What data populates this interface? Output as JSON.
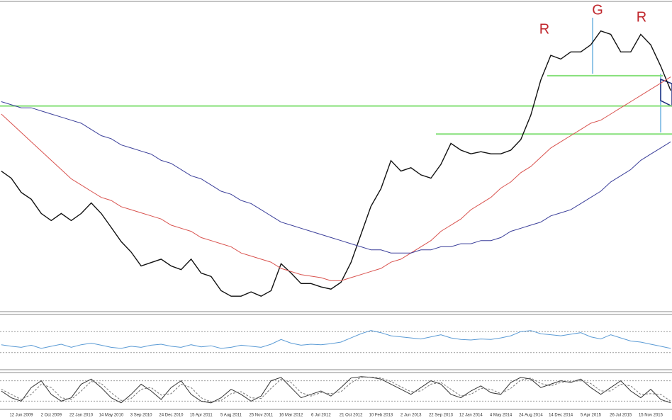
{
  "chart_data": [
    {
      "type": "line",
      "ylim": [
        0,
        100
      ],
      "annotations": [
        "R",
        "G",
        "R"
      ],
      "levels": [
        66.6,
        57.5,
        76.4
      ],
      "level_color": "#86e07a",
      "series": [
        {
          "color": "#111111",
          "values": [
            45.5,
            43.2,
            38.6,
            36.4,
            31.8,
            29.5,
            31.8,
            29.5,
            31.8,
            35.2,
            31.8,
            27.3,
            22.7,
            19.3,
            14.8,
            15.9,
            17.0,
            14.8,
            13.6,
            17.0,
            12.5,
            11.4,
            6.8,
            5.0,
            5.0,
            6.4,
            5.0,
            6.8,
            15.5,
            12.5,
            9.1,
            9.1,
            8.0,
            7.3,
            9.5,
            15.9,
            25.0,
            34.1,
            39.8,
            48.9,
            45.5,
            46.6,
            44.3,
            43.2,
            47.7,
            54.5,
            52.3,
            51.1,
            51.8,
            51.1,
            51.1,
            52.3,
            55.7,
            63.6,
            75.0,
            83.0,
            81.8,
            84.1,
            84.1,
            86.4,
            90.9,
            89.8,
            84.1,
            84.1,
            89.8,
            86.4,
            79.5,
            71.6
          ]
        },
        {
          "color": "#d9534f",
          "values": [
            64,
            61,
            58,
            55,
            52,
            49,
            46,
            43,
            41,
            39,
            37,
            36,
            34,
            33,
            32,
            31,
            30,
            28,
            27,
            26,
            24,
            23,
            22,
            21,
            19,
            18,
            17,
            16,
            14,
            13,
            12,
            11.5,
            11,
            10,
            10,
            11,
            12,
            13,
            14,
            16,
            17,
            19,
            21,
            23,
            26,
            28,
            30,
            33,
            35,
            37,
            40,
            42,
            45,
            47,
            50,
            53,
            55,
            57,
            59,
            61,
            62,
            64,
            66,
            68,
            70,
            72,
            74,
            76
          ]
        },
        {
          "color": "#3b3f9a",
          "values": [
            68,
            67,
            66,
            66,
            65,
            64,
            63,
            62,
            61,
            59,
            57,
            56,
            54,
            53,
            52,
            51,
            49,
            48,
            46,
            44,
            43,
            41,
            39,
            38,
            36,
            35,
            33,
            31,
            29,
            28,
            27,
            26,
            25,
            24,
            23,
            22,
            21,
            20,
            20,
            19,
            19,
            19,
            20,
            20,
            21,
            21,
            22,
            22,
            23,
            23,
            24,
            26,
            27,
            28,
            29,
            31,
            32,
            33,
            35,
            37,
            39,
            42,
            44,
            46,
            49,
            51,
            53,
            55
          ]
        }
      ]
    },
    {
      "type": "line",
      "ylim": [
        0,
        100
      ],
      "levels": [
        70,
        30
      ],
      "level_color": "#999999",
      "series": [
        {
          "color": "#5b9bd5",
          "values": [
            45,
            42,
            40,
            44,
            38,
            42,
            46,
            40,
            45,
            48,
            44,
            40,
            38,
            42,
            40,
            44,
            46,
            42,
            40,
            45,
            41,
            43,
            38,
            40,
            44,
            42,
            40,
            46,
            55,
            48,
            44,
            46,
            45,
            47,
            50,
            58,
            66,
            72,
            68,
            62,
            60,
            58,
            56,
            60,
            64,
            58,
            55,
            54,
            56,
            55,
            58,
            62,
            70,
            72,
            66,
            64,
            62,
            65,
            68,
            60,
            56,
            64,
            58,
            52,
            50,
            46,
            42,
            38
          ]
        }
      ]
    },
    {
      "type": "line",
      "ylim": [
        0,
        100
      ],
      "levels": [
        80,
        20
      ],
      "level_color": "#999999",
      "categories": [
        null,
        null,
        "12 Jun 2009",
        null,
        null,
        "2 Oct 2009",
        null,
        null,
        "22 Jan 2010",
        null,
        null,
        "14 May 2010",
        null,
        null,
        "3 Sep 2010",
        null,
        null,
        "24 Dec 2010",
        null,
        null,
        "15 Apr 2011",
        null,
        null,
        "5 Aug 2011",
        null,
        null,
        "25 Nov 2011",
        null,
        null,
        "16 Mar 2012",
        null,
        null,
        "6 Jul 2012",
        null,
        null,
        "21 Oct 2012",
        null,
        null,
        "10 Feb 2013",
        null,
        null,
        "2 Jun 2013",
        null,
        null,
        "22 Sep 2013",
        null,
        null,
        "12 Jan 2014",
        null,
        null,
        "4 May 2014",
        null,
        null,
        "24 Aug 2014",
        null,
        null,
        "14 Dec 2014",
        null,
        null,
        "5 Apr 2015",
        null,
        null,
        "26 Jul 2015",
        null,
        null,
        "15 Nov 2015",
        null,
        null
      ],
      "series": [
        {
          "color": "#333333",
          "values": [
            50,
            30,
            20,
            60,
            80,
            40,
            20,
            30,
            70,
            85,
            60,
            30,
            15,
            40,
            70,
            50,
            25,
            60,
            80,
            40,
            20,
            15,
            30,
            55,
            40,
            20,
            35,
            80,
            90,
            60,
            30,
            40,
            50,
            35,
            60,
            88,
            92,
            90,
            85,
            70,
            55,
            40,
            60,
            80,
            70,
            40,
            30,
            50,
            65,
            45,
            40,
            75,
            90,
            85,
            60,
            70,
            80,
            75,
            85,
            60,
            40,
            60,
            80,
            50,
            30,
            55,
            25,
            15
          ]
        },
        {
          "color": "#777777",
          "dashed": true,
          "values": [
            55,
            40,
            25,
            40,
            70,
            60,
            30,
            25,
            50,
            78,
            72,
            45,
            22,
            28,
            55,
            60,
            38,
            42,
            70,
            60,
            30,
            18,
            22,
            42,
            48,
            30,
            28,
            58,
            85,
            75,
            45,
            35,
            45,
            42,
            48,
            74,
            90,
            91,
            88,
            78,
            62,
            48,
            50,
            70,
            75,
            55,
            35,
            40,
            58,
            55,
            42,
            58,
            82,
            88,
            72,
            65,
            75,
            78,
            80,
            72,
            50,
            50,
            70,
            65,
            40,
            42,
            40,
            20
          ]
        }
      ]
    }
  ]
}
